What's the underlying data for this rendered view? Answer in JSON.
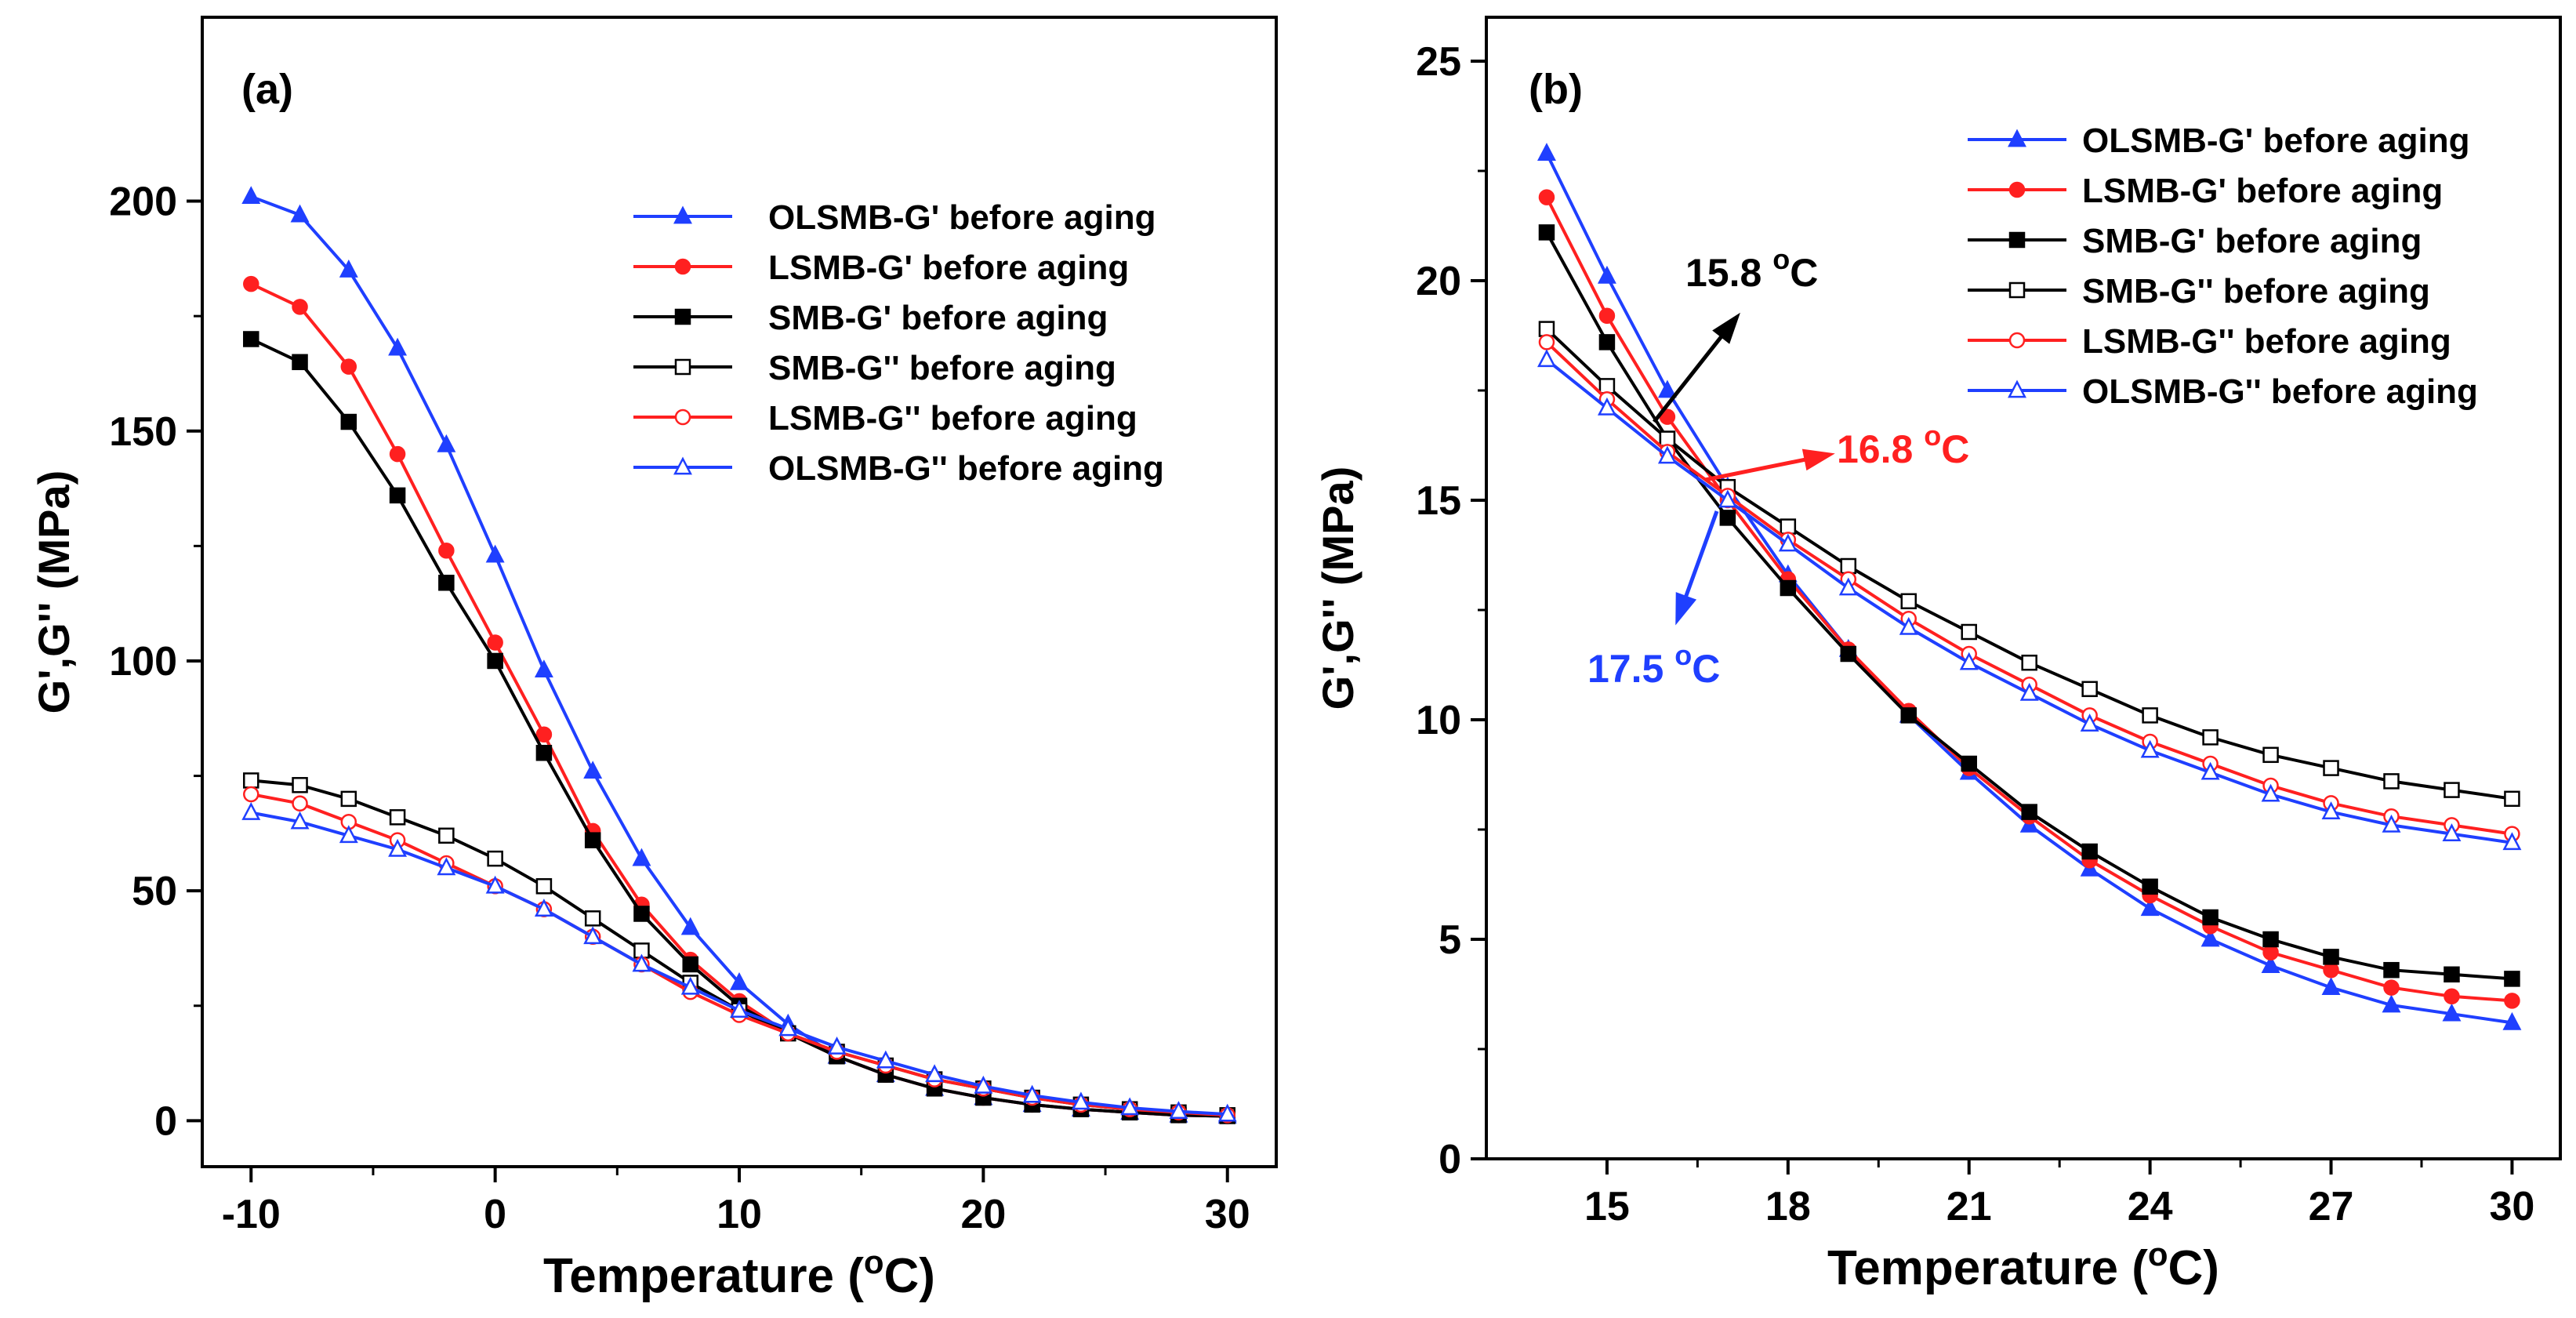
{
  "chart_data": [
    {
      "type": "line",
      "panel_label": "(a)",
      "xlabel_main": "Temperature (",
      "xlabel_sup": "o",
      "xlabel_end": "C)",
      "ylabel": "G',G'' (MPa)",
      "xlim": [
        -12,
        32
      ],
      "ylim": [
        -10,
        240
      ],
      "xticks": [
        -10,
        0,
        10,
        20,
        30
      ],
      "yticks": [
        0,
        50,
        100,
        150,
        200
      ],
      "legend_position": "upper-right",
      "series": [
        {
          "name": "OLSMB-G' before aging",
          "color": "#1f3fff",
          "marker": "triangle",
          "filled": true,
          "x": [
            -10,
            -8,
            -6,
            -4,
            -2,
            0,
            2,
            4,
            6,
            8,
            10,
            12,
            14,
            16,
            18,
            20,
            22,
            24,
            26,
            28,
            30
          ],
          "y": [
            201,
            197,
            185,
            168,
            147,
            123,
            98,
            76,
            57,
            42,
            30,
            21,
            14,
            10,
            7,
            5,
            3.5,
            2.5,
            1.8,
            1.2,
            1
          ]
        },
        {
          "name": "LSMB-G' before aging",
          "color": "#ff2020",
          "marker": "circle",
          "filled": true,
          "x": [
            -10,
            -8,
            -6,
            -4,
            -2,
            0,
            2,
            4,
            6,
            8,
            10,
            12,
            14,
            16,
            18,
            20,
            22,
            24,
            26,
            28,
            30
          ],
          "y": [
            182,
            177,
            164,
            145,
            124,
            104,
            84,
            63,
            47,
            35,
            26,
            19,
            14,
            10,
            7,
            5,
            3.5,
            2.5,
            1.8,
            1.2,
            1
          ]
        },
        {
          "name": "SMB-G' before aging",
          "color": "#000000",
          "marker": "square",
          "filled": true,
          "x": [
            -10,
            -8,
            -6,
            -4,
            -2,
            0,
            2,
            4,
            6,
            8,
            10,
            12,
            14,
            16,
            18,
            20,
            22,
            24,
            26,
            28,
            30
          ],
          "y": [
            170,
            165,
            152,
            136,
            117,
            100,
            80,
            61,
            45,
            34,
            25,
            19,
            14,
            10,
            7,
            5,
            3.5,
            2.5,
            1.8,
            1.2,
            1
          ]
        },
        {
          "name": "SMB-G'' before aging",
          "color": "#000000",
          "marker": "square",
          "filled": false,
          "x": [
            -10,
            -8,
            -6,
            -4,
            -2,
            0,
            2,
            4,
            6,
            8,
            10,
            12,
            14,
            16,
            18,
            20,
            22,
            24,
            26,
            28,
            30
          ],
          "y": [
            74,
            73,
            70,
            66,
            62,
            57,
            51,
            44,
            37,
            30,
            24,
            19,
            15,
            12,
            9,
            7,
            5,
            3.5,
            2.5,
            1.8,
            1.2
          ]
        },
        {
          "name": "LSMB-G'' before aging",
          "color": "#ff2020",
          "marker": "circle",
          "filled": false,
          "x": [
            -10,
            -8,
            -6,
            -4,
            -2,
            0,
            2,
            4,
            6,
            8,
            10,
            12,
            14,
            16,
            18,
            20,
            22,
            24,
            26,
            28,
            30
          ],
          "y": [
            71,
            69,
            65,
            61,
            56,
            51,
            46,
            40,
            34,
            28,
            23,
            19,
            15,
            12,
            9,
            7,
            5,
            3.5,
            2.5,
            1.8,
            1.2
          ]
        },
        {
          "name": "OLSMB-G'' before aging",
          "color": "#1f3fff",
          "marker": "triangle",
          "filled": false,
          "x": [
            -10,
            -8,
            -6,
            -4,
            -2,
            0,
            2,
            4,
            6,
            8,
            10,
            12,
            14,
            16,
            18,
            20,
            22,
            24,
            26,
            28,
            30
          ],
          "y": [
            67,
            65,
            62,
            59,
            55,
            51,
            46,
            40,
            34,
            29,
            24,
            20,
            16,
            13,
            10,
            7.5,
            5.5,
            4,
            2.8,
            2,
            1.4
          ]
        }
      ]
    },
    {
      "type": "line",
      "panel_label": "(b)",
      "xlabel_main": "Temperature (",
      "xlabel_sup": "o",
      "xlabel_end": "C)",
      "ylabel": "G',G'' (MPa)",
      "xlim": [
        13,
        30.8
      ],
      "ylim": [
        0,
        26
      ],
      "xticks": [
        15,
        18,
        21,
        24,
        27,
        30
      ],
      "yticks": [
        0,
        5,
        10,
        15,
        20,
        25
      ],
      "legend_position": "upper-right",
      "series": [
        {
          "name": "OLSMB-G' before aging",
          "color": "#1f3fff",
          "marker": "triangle",
          "filled": true,
          "x": [
            14,
            15,
            16,
            17,
            18,
            19,
            20,
            21,
            22,
            23,
            24,
            25,
            26,
            27,
            28,
            29,
            30
          ],
          "y": [
            22.9,
            20.1,
            17.5,
            15.3,
            13.3,
            11.6,
            10.1,
            8.8,
            7.6,
            6.6,
            5.7,
            5.0,
            4.4,
            3.9,
            3.5,
            3.3,
            3.1
          ]
        },
        {
          "name": "LSMB-G' before aging",
          "color": "#ff2020",
          "marker": "circle",
          "filled": true,
          "x": [
            14,
            15,
            16,
            17,
            18,
            19,
            20,
            21,
            22,
            23,
            24,
            25,
            26,
            27,
            28,
            29,
            30
          ],
          "y": [
            21.9,
            19.2,
            16.9,
            15.0,
            13.2,
            11.6,
            10.2,
            8.9,
            7.8,
            6.8,
            6.0,
            5.3,
            4.7,
            4.3,
            3.9,
            3.7,
            3.6
          ]
        },
        {
          "name": "SMB-G' before aging",
          "color": "#000000",
          "marker": "square",
          "filled": true,
          "x": [
            14,
            15,
            16,
            17,
            18,
            19,
            20,
            21,
            22,
            23,
            24,
            25,
            26,
            27,
            28,
            29,
            30
          ],
          "y": [
            21.1,
            18.6,
            16.4,
            14.6,
            13.0,
            11.5,
            10.1,
            9.0,
            7.9,
            7.0,
            6.2,
            5.5,
            5.0,
            4.6,
            4.3,
            4.2,
            4.1
          ]
        },
        {
          "name": "SMB-G'' before aging",
          "color": "#000000",
          "marker": "square",
          "filled": false,
          "x": [
            14,
            15,
            16,
            17,
            18,
            19,
            20,
            21,
            22,
            23,
            24,
            25,
            26,
            27,
            28,
            29,
            30
          ],
          "y": [
            18.9,
            17.6,
            16.4,
            15.3,
            14.4,
            13.5,
            12.7,
            12.0,
            11.3,
            10.7,
            10.1,
            9.6,
            9.2,
            8.9,
            8.6,
            8.4,
            8.2
          ]
        },
        {
          "name": "LSMB-G'' before aging",
          "color": "#ff2020",
          "marker": "circle",
          "filled": false,
          "x": [
            14,
            15,
            16,
            17,
            18,
            19,
            20,
            21,
            22,
            23,
            24,
            25,
            26,
            27,
            28,
            29,
            30
          ],
          "y": [
            18.6,
            17.3,
            16.1,
            15.1,
            14.1,
            13.2,
            12.3,
            11.5,
            10.8,
            10.1,
            9.5,
            9.0,
            8.5,
            8.1,
            7.8,
            7.6,
            7.4
          ]
        },
        {
          "name": "OLSMB-G'' before aging",
          "color": "#1f3fff",
          "marker": "triangle",
          "filled": false,
          "x": [
            14,
            15,
            16,
            17,
            18,
            19,
            20,
            21,
            22,
            23,
            24,
            25,
            26,
            27,
            28,
            29,
            30
          ],
          "y": [
            18.2,
            17.1,
            16.0,
            15.0,
            14.0,
            13.0,
            12.1,
            11.3,
            10.6,
            9.9,
            9.3,
            8.8,
            8.3,
            7.9,
            7.6,
            7.4,
            7.2
          ]
        }
      ],
      "annotations": [
        {
          "main": "15.8 ",
          "sup": "o",
          "end": "C",
          "color": "#000000",
          "point": [
            16.6,
            15.8
          ],
          "direction": "upper-right"
        },
        {
          "main": "16.8 ",
          "sup": "o",
          "end": "C",
          "color": "#ff2020",
          "point": [
            16.8,
            15.2
          ],
          "direction": "right"
        },
        {
          "main": "17.5 ",
          "sup": "o",
          "end": "C",
          "color": "#1f3fff",
          "point": [
            17.3,
            15.0
          ],
          "direction": "lower-left"
        }
      ]
    }
  ]
}
